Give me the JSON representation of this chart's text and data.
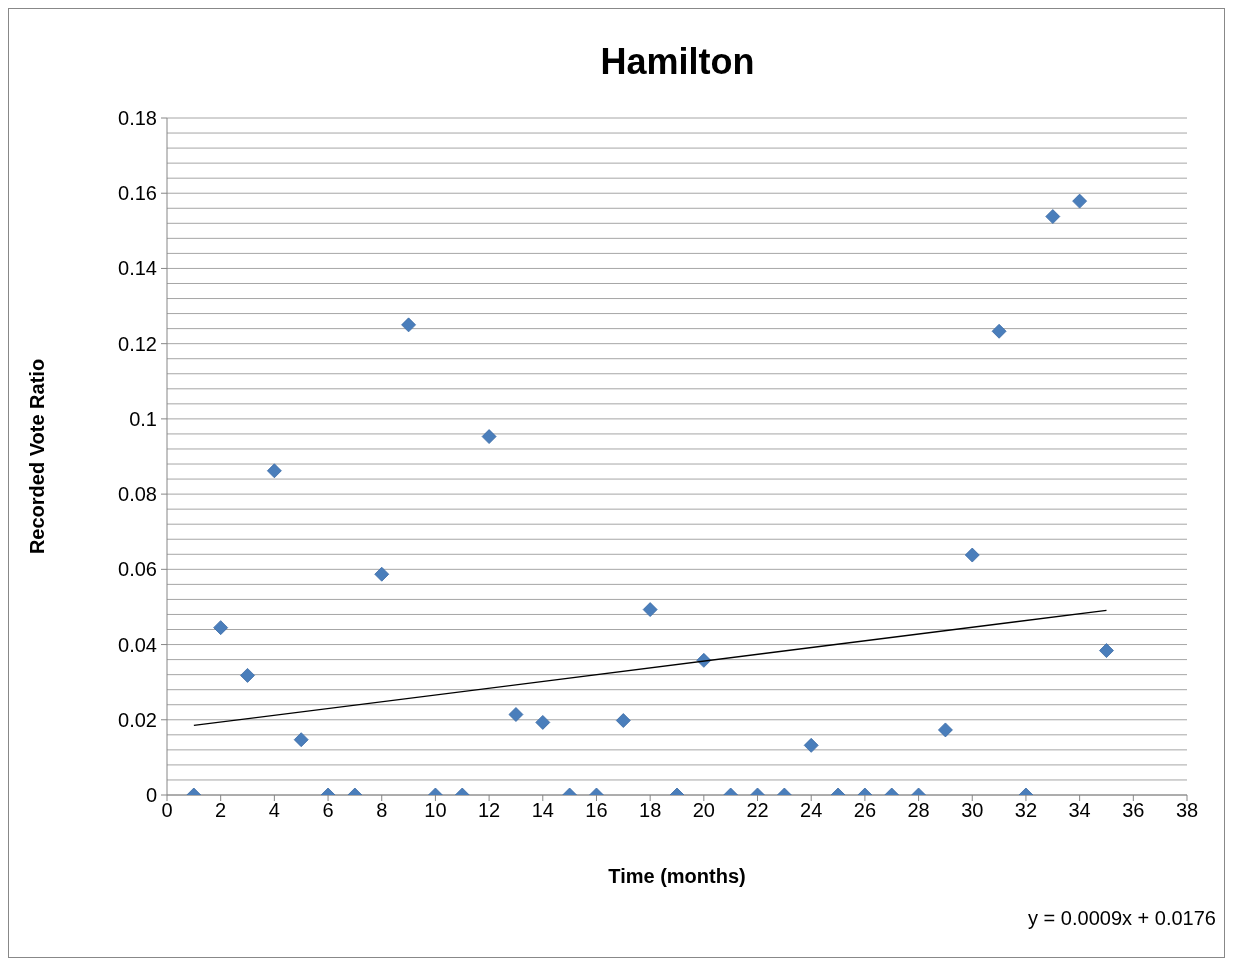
{
  "chart_data": {
    "type": "scatter",
    "title": "Hamilton",
    "xlabel": "Time (months)",
    "ylabel": "Recorded Vote Ratio",
    "annotations": [
      "y = 0.0009x + 0.0176"
    ],
    "x": [
      1,
      2,
      3,
      4,
      5,
      6,
      7,
      8,
      9,
      10,
      11,
      12,
      13,
      14,
      15,
      16,
      17,
      18,
      19,
      20,
      21,
      22,
      23,
      24,
      25,
      26,
      27,
      28,
      29,
      30,
      31,
      32,
      33,
      34,
      35
    ],
    "series": [
      {
        "color": "#4a7ebb",
        "marker": "diamond",
        "values": [
          0,
          0.0445,
          0.0318,
          0.0862,
          0.0147,
          0,
          0,
          0.0587,
          0.125,
          0,
          0,
          0.0953,
          0.0214,
          0.0193,
          0,
          0,
          0.0198,
          0.0493,
          0,
          0.0358,
          0,
          0,
          0,
          0.0132,
          0,
          0,
          0,
          0,
          0.0173,
          0.0638,
          0.1233,
          0,
          0.1538,
          0.1579,
          0.0384
        ]
      },
      {
        "type": "line",
        "color": "#000000",
        "marker": "none",
        "x": [
          1,
          35
        ],
        "values": [
          0.0185,
          0.0491
        ]
      }
    ],
    "xlim": [
      0,
      38
    ],
    "xticks": [
      0,
      2,
      4,
      6,
      8,
      10,
      12,
      14,
      16,
      18,
      20,
      22,
      24,
      26,
      28,
      30,
      32,
      34,
      36,
      38
    ],
    "ylim": [
      0,
      0.18
    ],
    "yticks": [
      0,
      {
        "value": 0.004,
        "label": null
      },
      {
        "value": 0.008,
        "label": null
      },
      {
        "value": 0.012,
        "label": null
      },
      {
        "value": 0.016,
        "label": null
      },
      0.02,
      {
        "value": 0.024,
        "label": null
      },
      {
        "value": 0.028,
        "label": null
      },
      {
        "value": 0.032,
        "label": null
      },
      {
        "value": 0.036,
        "label": null
      },
      0.04,
      {
        "value": 0.044,
        "label": null
      },
      {
        "value": 0.048,
        "label": null
      },
      {
        "value": 0.052,
        "label": null
      },
      {
        "value": 0.056,
        "label": null
      },
      0.06,
      {
        "value": 0.064,
        "label": null
      },
      {
        "value": 0.068,
        "label": null
      },
      {
        "value": 0.072,
        "label": null
      },
      {
        "value": 0.076,
        "label": null
      },
      0.08,
      {
        "value": 0.084,
        "label": null
      },
      {
        "value": 0.088,
        "label": null
      },
      {
        "value": 0.092,
        "label": null
      },
      {
        "value": 0.096,
        "label": null
      },
      0.1,
      {
        "value": 0.104,
        "label": null
      },
      {
        "value": 0.108,
        "label": null
      },
      {
        "value": 0.112,
        "label": null
      },
      {
        "value": 0.116,
        "label": null
      },
      0.12,
      {
        "value": 0.124,
        "label": null
      },
      {
        "value": 0.128,
        "label": null
      },
      {
        "value": 0.132,
        "label": null
      },
      {
        "value": 0.136,
        "label": null
      },
      0.14,
      {
        "value": 0.144,
        "label": null
      },
      {
        "value": 0.148,
        "label": null
      },
      {
        "value": 0.152,
        "label": null
      },
      {
        "value": 0.156,
        "label": null
      },
      0.16,
      {
        "value": 0.164,
        "label": null
      },
      {
        "value": 0.168,
        "label": null
      },
      {
        "value": 0.172,
        "label": null
      },
      {
        "value": 0.176,
        "label": null
      },
      0.18
    ],
    "grid": "y",
    "legend": false
  }
}
